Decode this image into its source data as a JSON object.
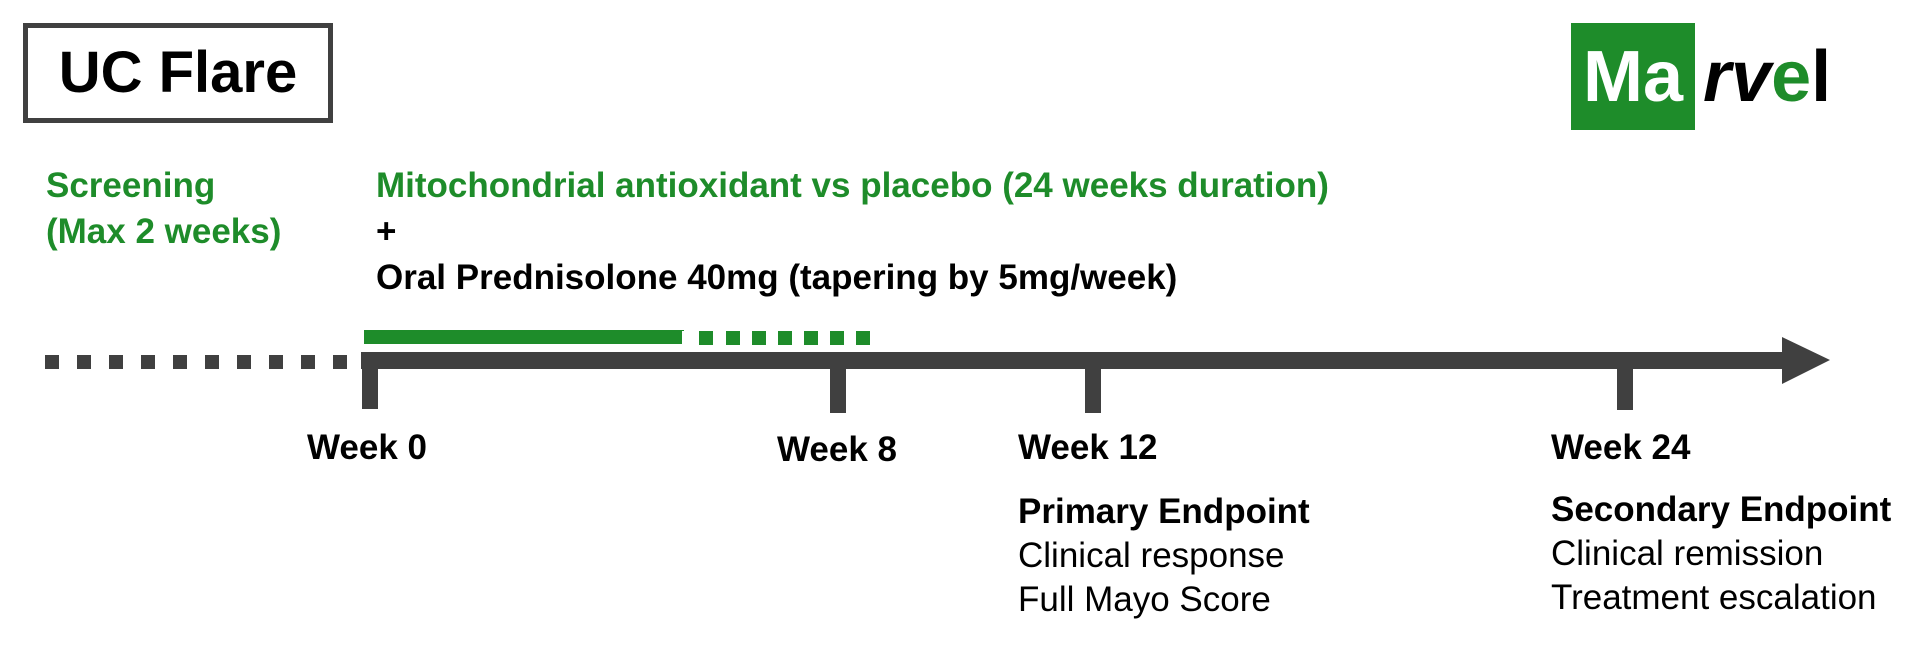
{
  "title": "UC Flare",
  "logo": {
    "boxed_text": "Ma",
    "rest": [
      "r",
      "v",
      "e",
      "l"
    ],
    "brand_color": "#1e8c2a"
  },
  "colors": {
    "green": "#1e8c2a",
    "axis": "#404040",
    "text": "#000000"
  },
  "screening": {
    "line1": "Screening",
    "line2": "(Max 2 weeks)"
  },
  "treatment": {
    "line1": "Mitochondrial antioxidant vs placebo (24 weeks duration)",
    "line2": "+",
    "line3": "Oral Prednisolone 40mg (tapering by 5mg/week)"
  },
  "timeline": {
    "weeks": [
      {
        "label": "Week 0",
        "week": 0
      },
      {
        "label": "Week 8",
        "week": 8
      },
      {
        "label": "Week 12",
        "week": 12
      },
      {
        "label": "Week 24",
        "week": 24
      }
    ],
    "primary_endpoint": {
      "title": "Primary Endpoint",
      "items": [
        "Clinical response",
        "Full Mayo Score"
      ]
    },
    "secondary_endpoint": {
      "title": "Secondary Endpoint",
      "items": [
        "Clinical remission",
        "Treatment escalation"
      ]
    }
  }
}
